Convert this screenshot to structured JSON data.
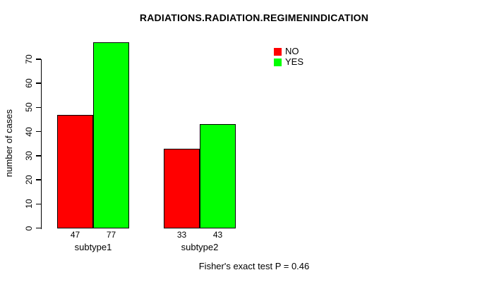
{
  "chart_data": {
    "type": "bar",
    "title": "RADIATIONS.RADIATION.REGIMENINDICATION",
    "ylabel": "number of cases",
    "xlabel": "",
    "categories": [
      "subtype1",
      "subtype2"
    ],
    "series": [
      {
        "name": "NO",
        "color": "#ff0000",
        "values": [
          47,
          33
        ]
      },
      {
        "name": "YES",
        "color": "#00ff00",
        "values": [
          77,
          43
        ]
      }
    ],
    "yticks": [
      0,
      10,
      20,
      30,
      40,
      50,
      60,
      70
    ],
    "ylim": [
      0,
      70
    ],
    "grid": false,
    "show_bar_value_labels": true,
    "bar_border_color": "#000000",
    "axis_color": "#000000",
    "legend_position": "top-right",
    "legend_labels": [
      "NO",
      "YES"
    ],
    "footnote": "Fisher's exact test P = 0.46"
  }
}
